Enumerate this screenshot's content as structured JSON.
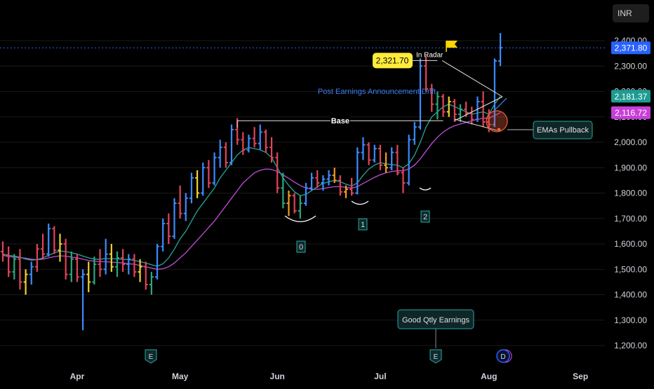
{
  "currency": "INR",
  "colors": {
    "background": "#000000",
    "grid": "#1a1a1a",
    "ema_fast": "#26a69a",
    "ema_slow": "#c04dd8",
    "last_price_tag": "#2962ff",
    "ema_fast_tag": "#1e9c92",
    "ema_slow_tag": "#c83fd8",
    "annotation_highlight": "#ffeb3b",
    "annotation_text_blue": "#3d7ef0",
    "candle_blue": "#3d8bfd",
    "candle_red": "#e0445a",
    "candle_yellow": "#f0d030",
    "candle_green": "#2aa87a",
    "candle_orange": "#f59a23"
  },
  "chart_data": {
    "type": "ohlc",
    "y_axis": {
      "min": 1150,
      "max": 2450,
      "ticks": [
        "1,200.00",
        "1,300.00",
        "1,400.00",
        "1,500.00",
        "1,600.00",
        "1,700.00",
        "1,800.00",
        "1,900.00",
        "2,000.00",
        "2,100.00",
        "2,200.00",
        "2,300.00",
        "2,400.00"
      ],
      "tick_values": [
        1200,
        1300,
        1400,
        1500,
        1600,
        1700,
        1800,
        1900,
        2000,
        2100,
        2200,
        2300,
        2400
      ]
    },
    "x_axis": {
      "labels": [
        "Apr",
        "May",
        "Jun",
        "Jul",
        "Aug",
        "Sep"
      ],
      "label_bar_index": [
        13,
        31,
        48,
        66,
        85,
        101
      ]
    },
    "price_tags": [
      {
        "label": "2,371.80",
        "value": 2371.8,
        "role": "last"
      },
      {
        "label": "2,181.37",
        "value": 2181.37,
        "role": "ema_fast"
      },
      {
        "label": "2,116.72",
        "value": 2116.72,
        "role": "ema_slow"
      }
    ],
    "bars": [
      [
        1570,
        1610,
        1530,
        1555
      ],
      [
        1555,
        1590,
        1470,
        1490
      ],
      [
        1490,
        1560,
        1460,
        1540
      ],
      [
        1540,
        1580,
        1420,
        1450
      ],
      [
        1450,
        1500,
        1400,
        1480
      ],
      [
        1480,
        1530,
        1440,
        1510
      ],
      [
        1510,
        1600,
        1490,
        1580
      ],
      [
        1580,
        1640,
        1540,
        1560
      ],
      [
        1560,
        1680,
        1550,
        1660
      ],
      [
        1660,
        1670,
        1560,
        1575
      ],
      [
        1575,
        1640,
        1530,
        1600
      ],
      [
        1600,
        1620,
        1460,
        1480
      ],
      [
        1480,
        1570,
        1450,
        1540
      ],
      [
        1540,
        1560,
        1450,
        1470
      ],
      [
        1470,
        1500,
        1260,
        1480
      ],
      [
        1480,
        1530,
        1410,
        1450
      ],
      [
        1450,
        1550,
        1440,
        1520
      ],
      [
        1520,
        1580,
        1470,
        1500
      ],
      [
        1500,
        1620,
        1480,
        1560
      ],
      [
        1560,
        1600,
        1490,
        1510
      ],
      [
        1510,
        1570,
        1470,
        1545
      ],
      [
        1545,
        1580,
        1490,
        1520
      ],
      [
        1520,
        1560,
        1480,
        1540
      ],
      [
        1540,
        1560,
        1470,
        1490
      ],
      [
        1490,
        1540,
        1450,
        1510
      ],
      [
        1510,
        1530,
        1420,
        1440
      ],
      [
        1440,
        1490,
        1400,
        1470
      ],
      [
        1470,
        1600,
        1460,
        1590
      ],
      [
        1590,
        1700,
        1570,
        1680
      ],
      [
        1680,
        1720,
        1600,
        1630
      ],
      [
        1630,
        1780,
        1620,
        1760
      ],
      [
        1760,
        1830,
        1700,
        1720
      ],
      [
        1720,
        1800,
        1690,
        1780
      ],
      [
        1780,
        1880,
        1760,
        1860
      ],
      [
        1860,
        1890,
        1780,
        1800
      ],
      [
        1800,
        1920,
        1790,
        1900
      ],
      [
        1900,
        1930,
        1820,
        1840
      ],
      [
        1840,
        1960,
        1830,
        1940
      ],
      [
        1940,
        2010,
        1900,
        1980
      ],
      [
        1980,
        2000,
        1900,
        1920
      ],
      [
        1920,
        2070,
        1910,
        2050
      ],
      [
        2050,
        2095,
        1990,
        2010
      ],
      [
        2010,
        2040,
        1950,
        1970
      ],
      [
        1970,
        2030,
        1960,
        2015
      ],
      [
        2015,
        2060,
        1980,
        1995
      ],
      [
        1995,
        2070,
        1970,
        2040
      ],
      [
        2040,
        2050,
        1960,
        1980
      ],
      [
        1980,
        2020,
        1920,
        1940
      ],
      [
        1940,
        1960,
        1800,
        1820
      ],
      [
        1820,
        1880,
        1740,
        1760
      ],
      [
        1760,
        1810,
        1710,
        1790
      ],
      [
        1790,
        1800,
        1720,
        1730
      ],
      [
        1730,
        1790,
        1700,
        1760
      ],
      [
        1760,
        1840,
        1750,
        1820
      ],
      [
        1820,
        1880,
        1810,
        1860
      ],
      [
        1860,
        1890,
        1820,
        1840
      ],
      [
        1840,
        1870,
        1810,
        1855
      ],
      [
        1855,
        1890,
        1830,
        1870
      ],
      [
        1870,
        1900,
        1840,
        1850
      ],
      [
        1850,
        1870,
        1790,
        1805
      ],
      [
        1805,
        1830,
        1780,
        1815
      ],
      [
        1815,
        1860,
        1790,
        1800
      ],
      [
        1800,
        1980,
        1795,
        1960
      ],
      [
        1960,
        2020,
        1930,
        1990
      ],
      [
        1990,
        2000,
        1910,
        1930
      ],
      [
        1930,
        1990,
        1920,
        1975
      ],
      [
        1975,
        1990,
        1890,
        1910
      ],
      [
        1910,
        1960,
        1880,
        1900
      ],
      [
        1900,
        1980,
        1890,
        1960
      ],
      [
        1960,
        1990,
        1870,
        1880
      ],
      [
        1880,
        1900,
        1800,
        1840
      ],
      [
        1840,
        2030,
        1830,
        2010
      ],
      [
        2010,
        2080,
        1990,
        2060
      ],
      [
        2060,
        2330,
        2050,
        2300
      ],
      [
        2300,
        2340,
        2200,
        2210
      ],
      [
        2210,
        2230,
        2120,
        2150
      ],
      [
        2150,
        2200,
        2090,
        2180
      ],
      [
        2180,
        2190,
        2100,
        2120
      ],
      [
        2120,
        2180,
        2100,
        2160
      ],
      [
        2160,
        2170,
        2080,
        2110
      ],
      [
        2110,
        2150,
        2080,
        2130
      ],
      [
        2130,
        2160,
        2100,
        2115
      ],
      [
        2115,
        2140,
        2070,
        2090
      ],
      [
        2090,
        2180,
        2080,
        2160
      ],
      [
        2160,
        2200,
        2060,
        2080
      ],
      [
        2080,
        2130,
        2040,
        2070
      ],
      [
        2070,
        2330,
        2060,
        2320
      ],
      [
        2320,
        2430,
        2300,
        2372
      ]
    ],
    "bar_colors": [
      "candle_red",
      "candle_red",
      "candle_green",
      "candle_red",
      "candle_yellow",
      "candle_blue",
      "candle_red",
      "candle_red",
      "candle_blue",
      "candle_red",
      "candle_yellow",
      "candle_red",
      "candle_green",
      "candle_red",
      "candle_blue",
      "candle_yellow",
      "candle_green",
      "candle_red",
      "candle_blue",
      "candle_yellow",
      "candle_green",
      "candle_red",
      "candle_blue",
      "candle_red",
      "candle_yellow",
      "candle_red",
      "candle_green",
      "candle_blue",
      "candle_blue",
      "candle_red",
      "candle_blue",
      "candle_red",
      "candle_blue",
      "candle_blue",
      "candle_yellow",
      "candle_blue",
      "candle_red",
      "candle_blue",
      "candle_blue",
      "candle_red",
      "candle_blue",
      "candle_red",
      "candle_red",
      "candle_blue",
      "candle_red",
      "candle_blue",
      "candle_red",
      "candle_red",
      "candle_red",
      "candle_green",
      "candle_orange",
      "candle_red",
      "candle_green",
      "candle_blue",
      "candle_blue",
      "candle_red",
      "candle_blue",
      "candle_blue",
      "candle_orange",
      "candle_red",
      "candle_orange",
      "candle_red",
      "candle_blue",
      "candle_blue",
      "candle_red",
      "candle_blue",
      "candle_red",
      "candle_orange",
      "candle_blue",
      "candle_red",
      "candle_red",
      "candle_blue",
      "candle_blue",
      "candle_blue",
      "candle_red",
      "candle_red",
      "candle_green",
      "candle_red",
      "candle_yellow",
      "candle_red",
      "candle_green",
      "candle_red",
      "candle_red",
      "candle_blue",
      "candle_red",
      "candle_red",
      "candle_blue",
      "candle_blue"
    ],
    "ema_fast": [
      1560,
      1555,
      1552,
      1548,
      1540,
      1536,
      1538,
      1545,
      1555,
      1565,
      1572,
      1570,
      1565,
      1560,
      1552,
      1545,
      1540,
      1540,
      1542,
      1542,
      1541,
      1540,
      1538,
      1535,
      1530,
      1525,
      1518,
      1512,
      1522,
      1545,
      1580,
      1620,
      1650,
      1690,
      1730,
      1760,
      1790,
      1820,
      1860,
      1890,
      1920,
      1950,
      1970,
      1980,
      1975,
      1970,
      1960,
      1940,
      1900,
      1860,
      1830,
      1805,
      1790,
      1795,
      1810,
      1825,
      1838,
      1845,
      1850,
      1845,
      1835,
      1828,
      1840,
      1870,
      1895,
      1910,
      1920,
      1915,
      1912,
      1910,
      1900,
      1915,
      1950,
      2000,
      2060,
      2100,
      2120,
      2140,
      2150,
      2140,
      2130,
      2120,
      2110,
      2115,
      2120,
      2110,
      2150,
      2181
    ],
    "ema_slow": [
      1555,
      1550,
      1548,
      1546,
      1544,
      1540,
      1538,
      1540,
      1545,
      1550,
      1553,
      1552,
      1548,
      1545,
      1540,
      1535,
      1532,
      1530,
      1530,
      1528,
      1527,
      1525,
      1522,
      1520,
      1515,
      1510,
      1505,
      1500,
      1502,
      1510,
      1525,
      1545,
      1565,
      1590,
      1615,
      1640,
      1665,
      1690,
      1720,
      1750,
      1780,
      1810,
      1840,
      1860,
      1880,
      1890,
      1895,
      1893,
      1885,
      1872,
      1858,
      1843,
      1830,
      1820,
      1815,
      1815,
      1818,
      1822,
      1825,
      1825,
      1823,
      1820,
      1825,
      1838,
      1850,
      1862,
      1872,
      1880,
      1885,
      1888,
      1888,
      1895,
      1910,
      1935,
      1965,
      1995,
      2020,
      2040,
      2055,
      2065,
      2072,
      2078,
      2085,
      2090,
      2095,
      2095,
      2105,
      2116.72
    ],
    "annotations": {
      "in_radar": {
        "price_label": "2,321.70",
        "value": 2321.7,
        "text": "In Radar"
      },
      "drift_text": "Post Earnings Announcement Drift",
      "base_label": "Base",
      "base_level": 2085,
      "cups": [
        "0",
        "1",
        "2"
      ],
      "emas_pullback": "EMAs Pullback",
      "earnings_label": "Good Qtly Earnings",
      "event_e": "E",
      "event_d": "D"
    }
  }
}
